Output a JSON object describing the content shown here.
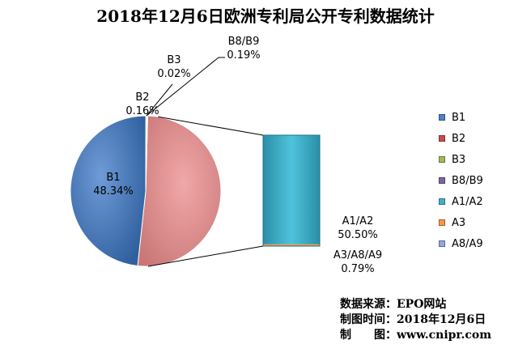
{
  "chart_data": {
    "type": "pie",
    "title": "2018年12月6日欧洲专利局公开专利数据统计",
    "pie_of_bar": true,
    "slices": [
      {
        "name": "B1",
        "value": 48.34,
        "label": "48.34%",
        "color": "#4f81bd"
      },
      {
        "name": "B2",
        "value": 0.16,
        "label": "0.16%",
        "color": "#c0504d"
      },
      {
        "name": "B3",
        "value": 0.02,
        "label": "0.02%",
        "color": "#9bbb59"
      },
      {
        "name": "B8/B9",
        "value": 0.19,
        "label": "0.19%",
        "color": "#8064a2"
      },
      {
        "name": "A1/A2",
        "value": 50.5,
        "label": "50.50%",
        "color": "#4bacc6"
      },
      {
        "name": "A3",
        "value": 0.77,
        "label": "",
        "color": "#f79646"
      },
      {
        "name": "A8/A9",
        "value": 0.02,
        "label": "",
        "color": "#8ea9db"
      }
    ],
    "combined_label": {
      "name": "A3/A8/A9",
      "value": 0.79,
      "label": "0.79%"
    },
    "legend_position": "right"
  },
  "source": {
    "line1": "数据来源：EPO网站",
    "line2": "制图时间：2018年12月6日",
    "line3": "制　　图：www.cnipr.com"
  }
}
